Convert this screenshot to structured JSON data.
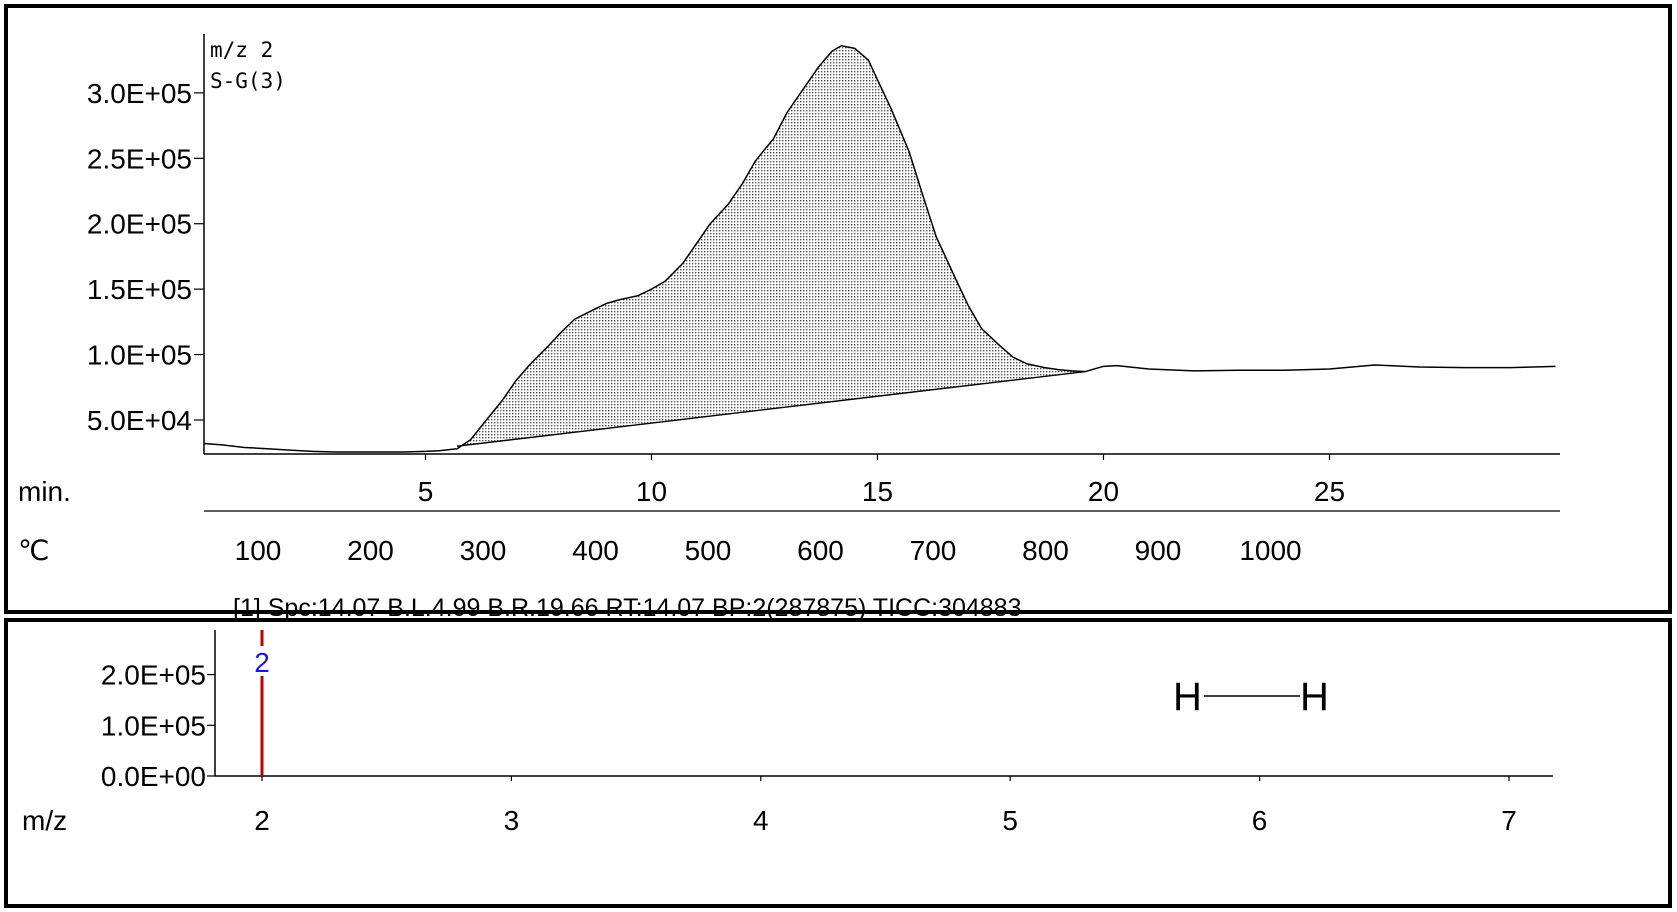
{
  "chart_data": [
    {
      "type": "area",
      "annotations": [
        "m/z 2",
        "S-G(3)"
      ],
      "x_axis_label": "min.",
      "x_ticks": [
        5,
        10,
        15,
        20,
        25
      ],
      "xlim": [
        0.1,
        30.1
      ],
      "secondary_x_axis_label": "℃",
      "secondary_x_ticks": [
        100,
        200,
        300,
        400,
        500,
        600,
        700,
        800,
        900,
        1000
      ],
      "y_ticks": [
        "5.0E+04",
        "1.0E+05",
        "1.5E+05",
        "2.0E+05",
        "2.5E+05",
        "3.0E+05"
      ],
      "ylim": [
        24000,
        345000
      ],
      "baseline": {
        "x": [
          5.7,
          19.6
        ],
        "y": [
          30000,
          87000
        ]
      },
      "series": [
        {
          "x": [
            0.1,
            0.5,
            1.0,
            1.5,
            2.0,
            2.5,
            3.0,
            3.5,
            4.0,
            4.5,
            5.0,
            5.3,
            5.7,
            6.0,
            6.3,
            6.7,
            7.0,
            7.3,
            7.7,
            8.0,
            8.3,
            8.7,
            9.0,
            9.3,
            9.7,
            10.0,
            10.3,
            10.7,
            11.0,
            11.3,
            11.7,
            12.0,
            12.3,
            12.7,
            13.0,
            13.3,
            13.7,
            14.0,
            14.2,
            14.5,
            14.8,
            15.0,
            15.3,
            15.7,
            16.0,
            16.3,
            16.7,
            17.0,
            17.3,
            17.7,
            18.0,
            18.3,
            18.7,
            19.0,
            19.3,
            19.6,
            20.0,
            20.3,
            21.0,
            22.0,
            23.0,
            24.0,
            25.0,
            26.0,
            27.0,
            28.0,
            29.0,
            30.0
          ],
          "y": [
            32000,
            31000,
            29000,
            28000,
            27000,
            26000,
            25500,
            25500,
            25500,
            25500,
            26000,
            26500,
            28000,
            35000,
            48000,
            65000,
            80000,
            92000,
            106000,
            117000,
            127000,
            134000,
            139000,
            142000,
            145000,
            150000,
            156000,
            170000,
            185000,
            200000,
            215000,
            230000,
            248000,
            265000,
            285000,
            300000,
            320000,
            332000,
            336000,
            334000,
            325000,
            310000,
            288000,
            255000,
            222000,
            190000,
            160000,
            138000,
            120000,
            107000,
            98000,
            93000,
            90000,
            88500,
            87500,
            87000,
            91000,
            91500,
            89000,
            87500,
            88000,
            88000,
            89000,
            92000,
            90500,
            90000,
            90000,
            91000
          ]
        }
      ]
    },
    {
      "type": "bar",
      "info": "[1] Spc:14.07 B.L.4.99 B.R.19.66 RT:14.07  BP:2(287875)  TICC:304883",
      "x_axis_label": "m/z",
      "x_ticks": [
        2,
        3,
        4,
        5,
        6,
        7
      ],
      "xlim": [
        1.8,
        7.2
      ],
      "y_ticks": [
        "0.0E+00",
        "1.0E+05",
        "2.0E+05"
      ],
      "ylim": [
        0,
        287875
      ],
      "bars": [
        {
          "x": 2,
          "value": 287875,
          "label": "2"
        }
      ],
      "structure": {
        "left_atom": "H",
        "right_atom": "H"
      },
      "colors": {
        "bar": "#c00000",
        "bar_label": "#1a1acc"
      }
    }
  ]
}
